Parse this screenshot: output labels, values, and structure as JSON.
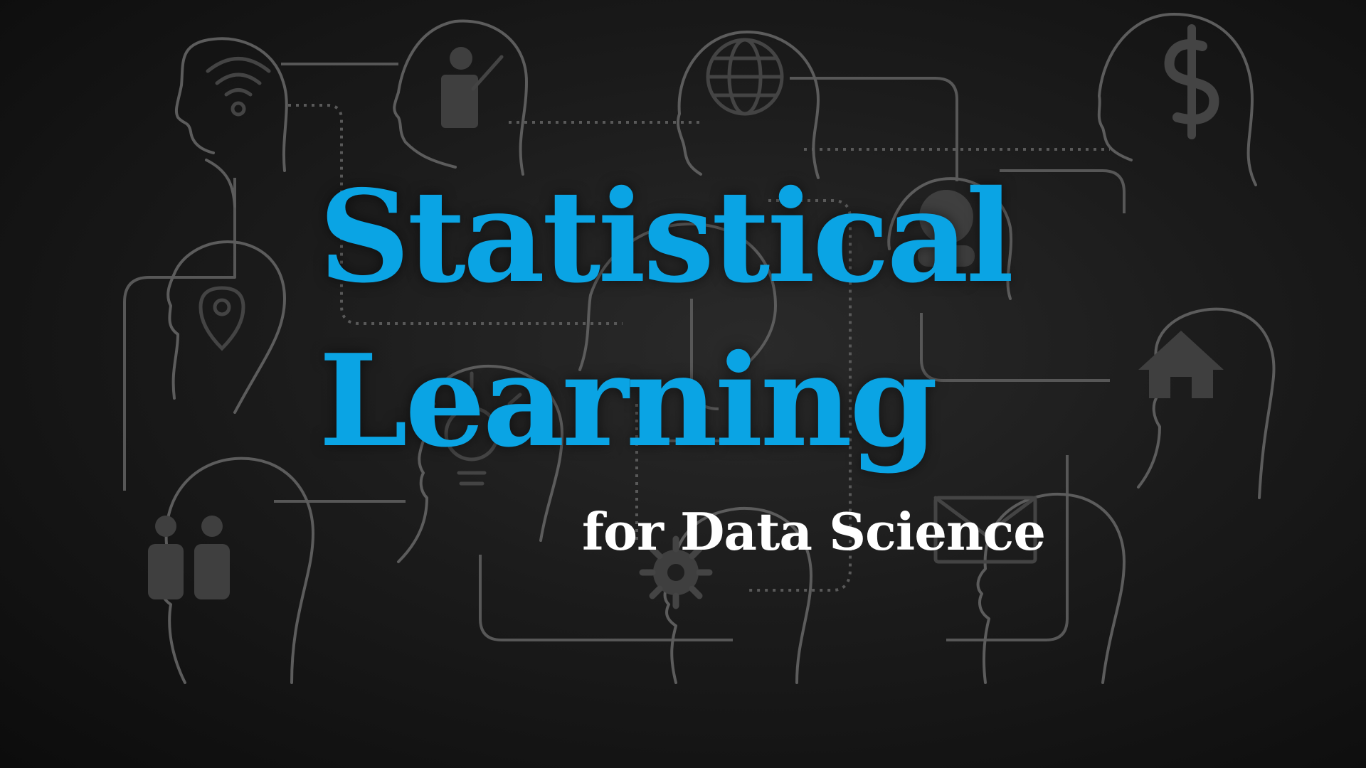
{
  "title": {
    "line1": "Statistical",
    "line2": "Learning"
  },
  "subtitle": "for Data Science",
  "colors": {
    "title": "#0aa4e4",
    "subtitle": "#ffffff",
    "background": "#1b1b1b",
    "outline": "#5c5c5c"
  },
  "background_icons": [
    "wifi-icon",
    "presenter-icon",
    "globe-icon",
    "dollar-icon",
    "location-pin-icon",
    "user-icon",
    "lightbulb-icon",
    "home-icon",
    "people-icon",
    "gear-icon",
    "envelope-icon"
  ]
}
